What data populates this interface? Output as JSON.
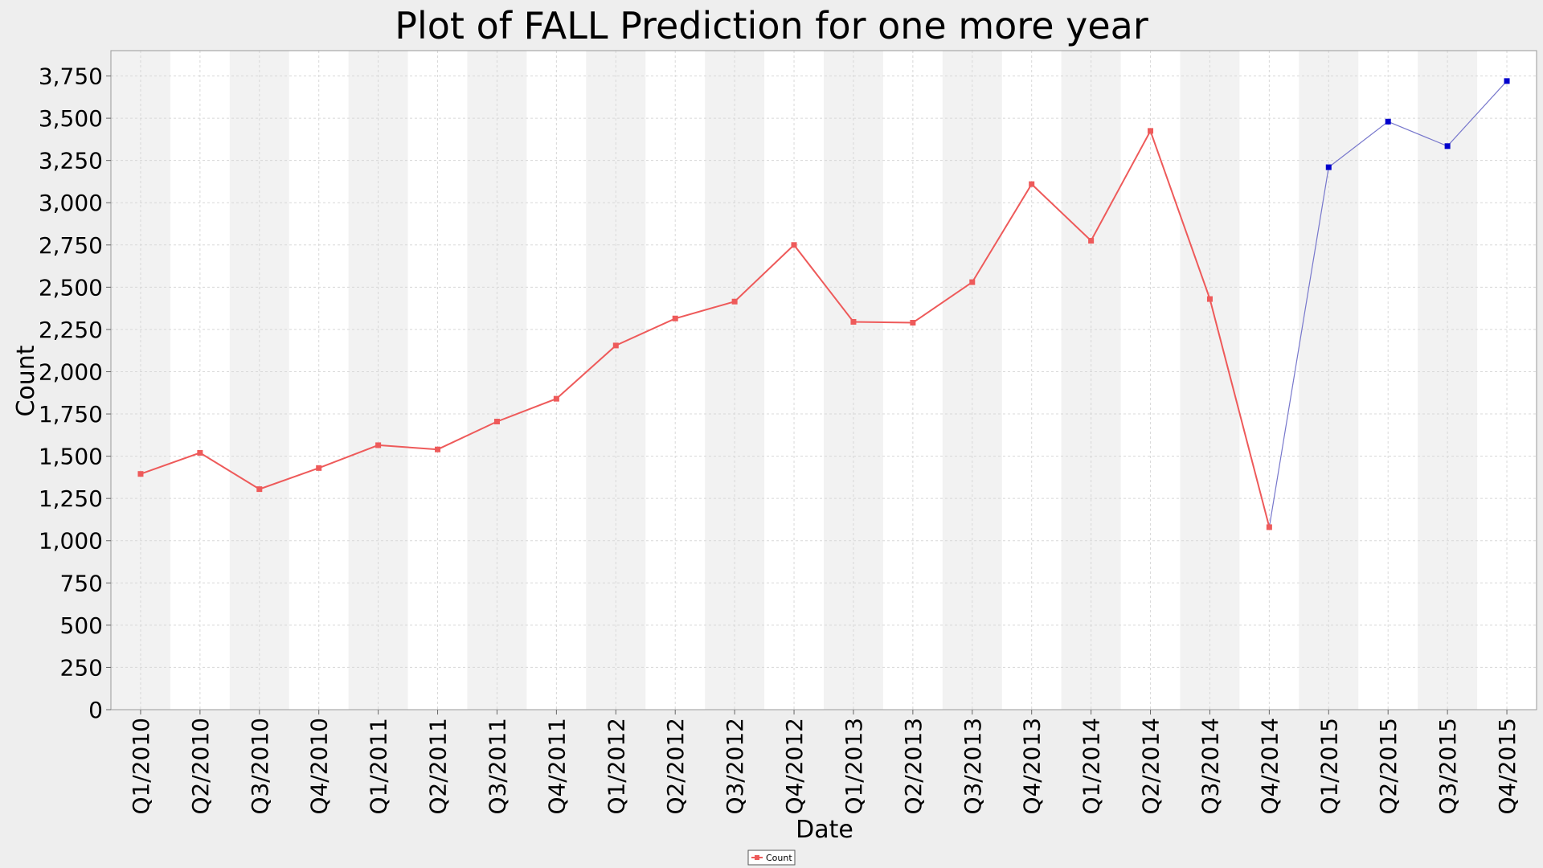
{
  "chart_data": {
    "type": "line",
    "title": "Plot of FALL Prediction for one more year",
    "xlabel": "Date",
    "ylabel": "Count",
    "ylim": [
      0,
      3900
    ],
    "yticks": [
      0,
      250,
      500,
      750,
      1000,
      1250,
      1500,
      1750,
      2000,
      2250,
      2500,
      2750,
      3000,
      3250,
      3500,
      3750
    ],
    "ytick_labels": [
      "0",
      "250",
      "500",
      "750",
      "1,000",
      "1,250",
      "1,500",
      "1,750",
      "2,000",
      "2,250",
      "2,500",
      "2,750",
      "3,000",
      "3,250",
      "3,500",
      "3,750"
    ],
    "categories": [
      "Q1/2010",
      "Q2/2010",
      "Q3/2010",
      "Q4/2010",
      "Q1/2011",
      "Q2/2011",
      "Q3/2011",
      "Q4/2011",
      "Q1/2012",
      "Q2/2012",
      "Q3/2012",
      "Q4/2012",
      "Q1/2013",
      "Q2/2013",
      "Q3/2013",
      "Q4/2013",
      "Q1/2014",
      "Q2/2014",
      "Q3/2014",
      "Q4/2014",
      "Q1/2015",
      "Q2/2015",
      "Q3/2015",
      "Q4/2015"
    ],
    "grid": true,
    "alternating_bands": true,
    "legend_position": "bottom-center",
    "series": [
      {
        "name": "Count",
        "color": "#ee5a5a",
        "marker": "square",
        "values": [
          1395,
          1520,
          1305,
          1430,
          1565,
          1540,
          1705,
          1840,
          2155,
          2315,
          2415,
          2750,
          2295,
          2290,
          2530,
          3110,
          2775,
          3425,
          2430,
          1080,
          null,
          null,
          null,
          null
        ],
        "in_legend": true
      },
      {
        "color": "#0000cc",
        "line_color": "#7777cc",
        "marker": "square",
        "values": [
          null,
          null,
          null,
          null,
          null,
          null,
          null,
          null,
          null,
          null,
          null,
          null,
          null,
          null,
          null,
          null,
          null,
          null,
          null,
          1080,
          3210,
          3480,
          3335,
          3720
        ],
        "in_legend": false
      }
    ]
  }
}
